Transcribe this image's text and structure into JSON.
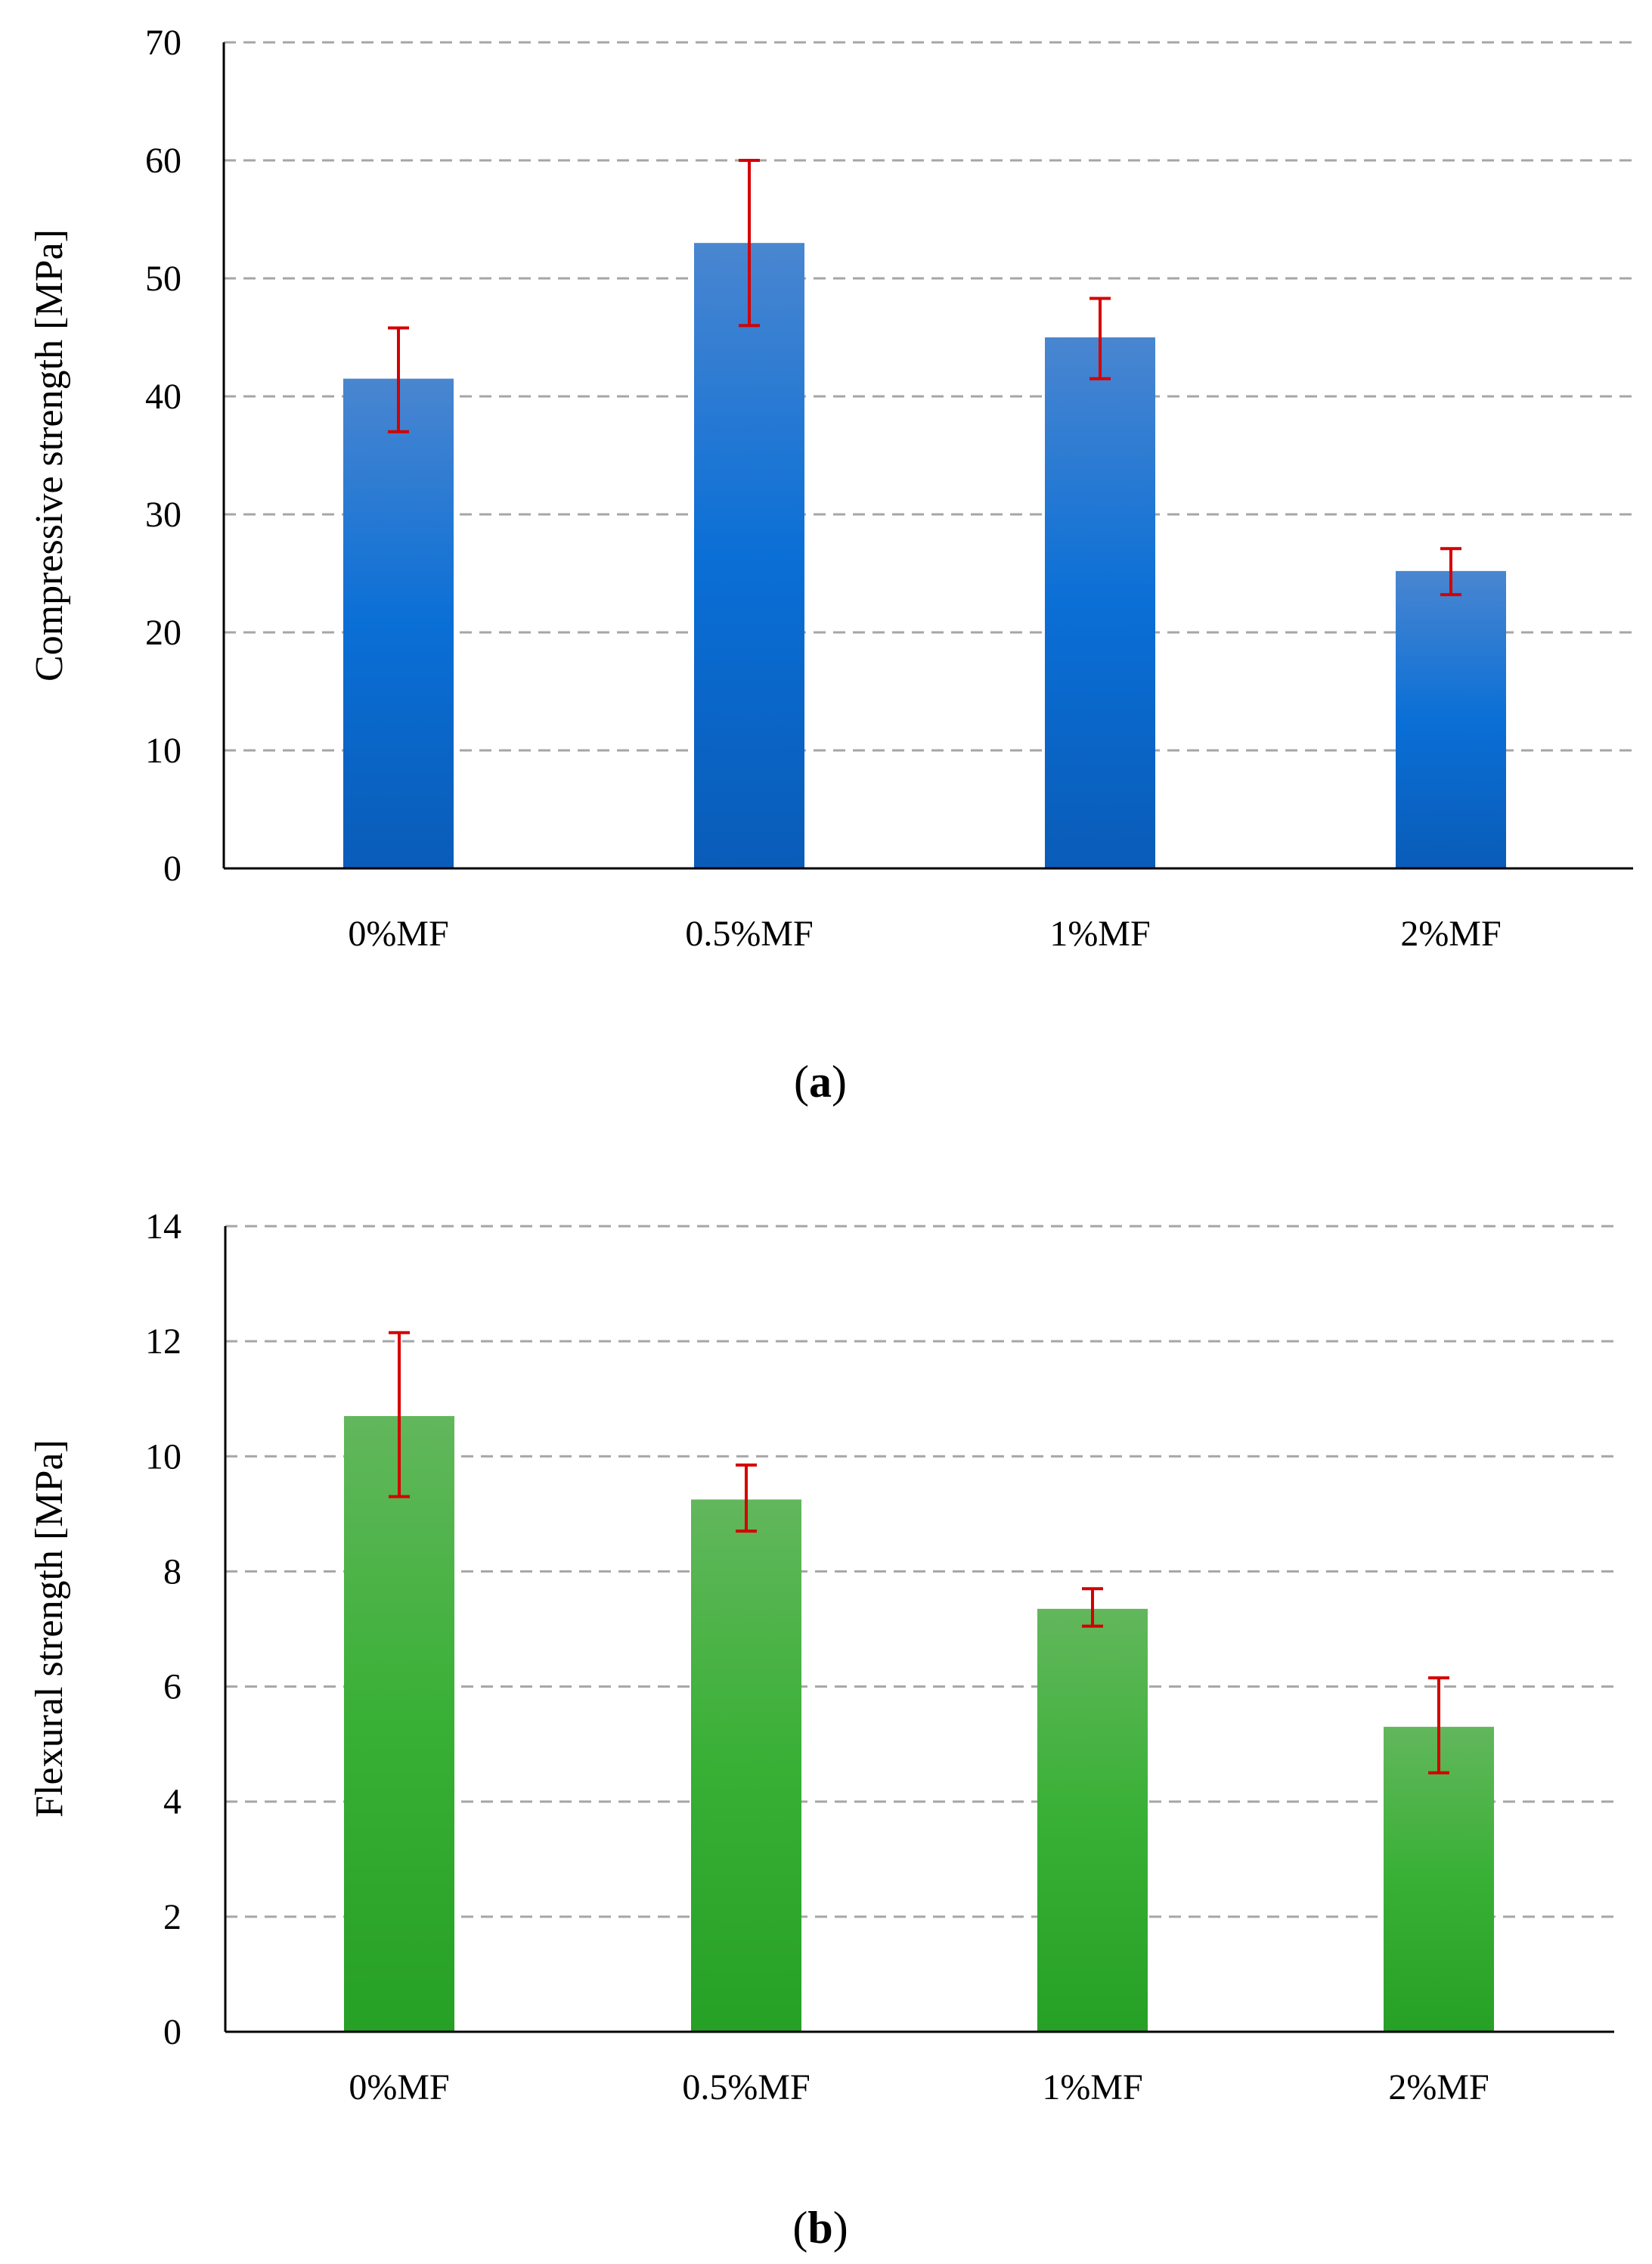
{
  "chart_data": [
    {
      "type": "bar",
      "panel_label": "a",
      "categories": [
        "0%MF",
        "0.5%MF",
        "1%MF",
        "2%MF"
      ],
      "values": [
        41.5,
        53.0,
        45.0,
        25.2
      ],
      "error_low": [
        37.0,
        46.0,
        41.5,
        23.2
      ],
      "error_high": [
        45.8,
        60.0,
        48.3,
        27.1
      ],
      "title": "",
      "xlabel": "",
      "ylabel": "Compressive strength [MPa]",
      "ylim": [
        0,
        70
      ],
      "yticks": [
        0,
        10,
        20,
        30,
        40,
        50,
        60,
        70
      ],
      "grid": true,
      "colors": {
        "top": "#4a86d0",
        "mid": "#0a6fd6",
        "bottom": "#0a5cb8",
        "error": "#d40000"
      }
    },
    {
      "type": "bar",
      "panel_label": "b",
      "categories": [
        "0%MF",
        "0.5%MF",
        "1%MF",
        "2%MF"
      ],
      "values": [
        10.7,
        9.25,
        7.35,
        5.3
      ],
      "error_low": [
        9.3,
        8.7,
        7.05,
        4.5
      ],
      "error_high": [
        12.15,
        9.85,
        7.7,
        6.15
      ],
      "title": "",
      "xlabel": "",
      "ylabel": "Flexural strength [MPa]",
      "ylim": [
        0,
        14
      ],
      "yticks": [
        0,
        2,
        4,
        6,
        8,
        10,
        12,
        14
      ],
      "grid": true,
      "colors": {
        "top": "#62b75c",
        "mid": "#38b035",
        "bottom": "#26a025",
        "error": "#d40000"
      }
    }
  ]
}
